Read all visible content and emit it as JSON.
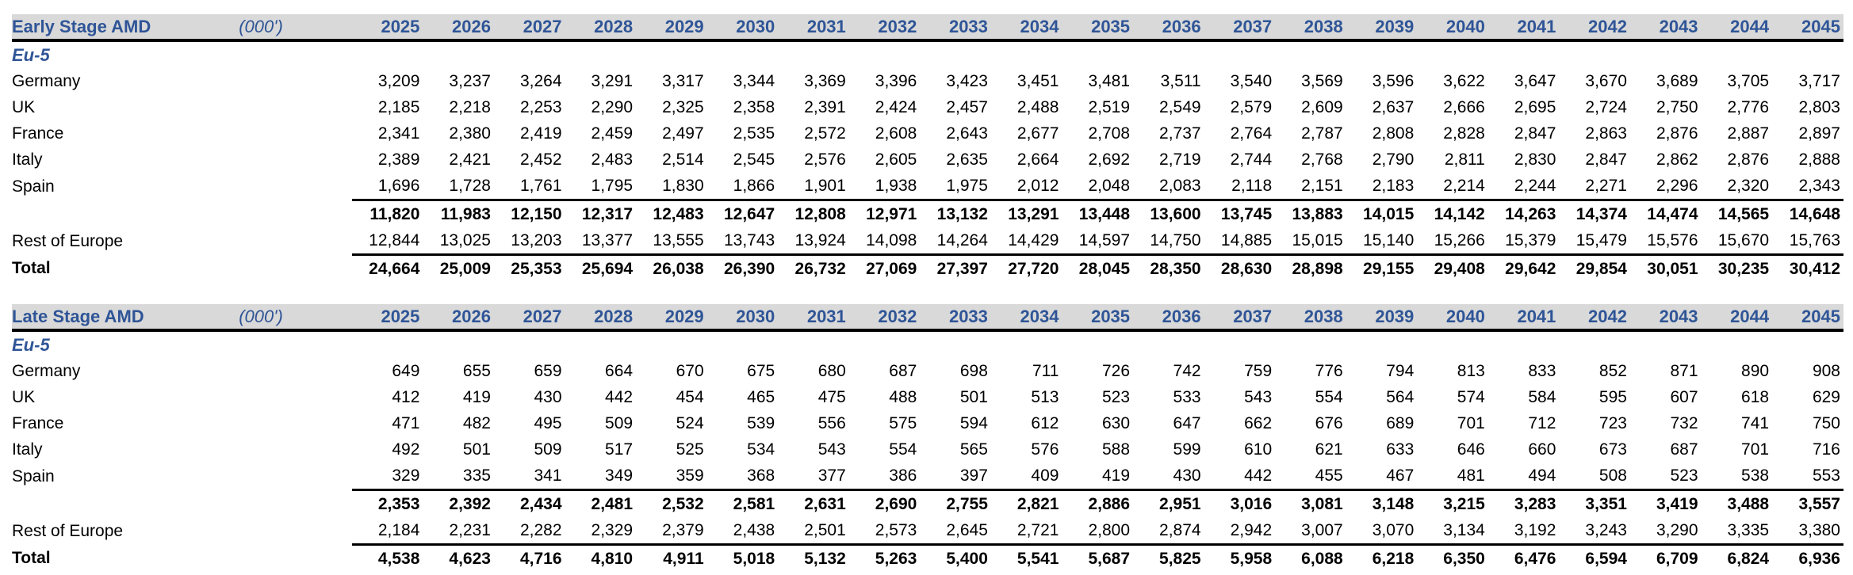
{
  "years": [
    "2025",
    "2026",
    "2027",
    "2028",
    "2029",
    "2030",
    "2031",
    "2032",
    "2033",
    "2034",
    "2035",
    "2036",
    "2037",
    "2038",
    "2039",
    "2040",
    "2041",
    "2042",
    "2043",
    "2044",
    "2045"
  ],
  "tables": [
    {
      "title": "Early Stage AMD",
      "unit": "(000')",
      "group": "Eu-5",
      "rows": [
        {
          "label": "Germany",
          "values": [
            "3,209",
            "3,237",
            "3,264",
            "3,291",
            "3,317",
            "3,344",
            "3,369",
            "3,396",
            "3,423",
            "3,451",
            "3,481",
            "3,511",
            "3,540",
            "3,569",
            "3,596",
            "3,622",
            "3,647",
            "3,670",
            "3,689",
            "3,705",
            "3,717"
          ]
        },
        {
          "label": "UK",
          "values": [
            "2,185",
            "2,218",
            "2,253",
            "2,290",
            "2,325",
            "2,358",
            "2,391",
            "2,424",
            "2,457",
            "2,488",
            "2,519",
            "2,549",
            "2,579",
            "2,609",
            "2,637",
            "2,666",
            "2,695",
            "2,724",
            "2,750",
            "2,776",
            "2,803"
          ]
        },
        {
          "label": "France",
          "values": [
            "2,341",
            "2,380",
            "2,419",
            "2,459",
            "2,497",
            "2,535",
            "2,572",
            "2,608",
            "2,643",
            "2,677",
            "2,708",
            "2,737",
            "2,764",
            "2,787",
            "2,808",
            "2,828",
            "2,847",
            "2,863",
            "2,876",
            "2,887",
            "2,897"
          ]
        },
        {
          "label": "Italy",
          "values": [
            "2,389",
            "2,421",
            "2,452",
            "2,483",
            "2,514",
            "2,545",
            "2,576",
            "2,605",
            "2,635",
            "2,664",
            "2,692",
            "2,719",
            "2,744",
            "2,768",
            "2,790",
            "2,811",
            "2,830",
            "2,847",
            "2,862",
            "2,876",
            "2,888"
          ]
        },
        {
          "label": "Spain",
          "values": [
            "1,696",
            "1,728",
            "1,761",
            "1,795",
            "1,830",
            "1,866",
            "1,901",
            "1,938",
            "1,975",
            "2,012",
            "2,048",
            "2,083",
            "2,118",
            "2,151",
            "2,183",
            "2,214",
            "2,244",
            "2,271",
            "2,296",
            "2,320",
            "2,343"
          ]
        }
      ],
      "subtotal": [
        "11,820",
        "11,983",
        "12,150",
        "12,317",
        "12,483",
        "12,647",
        "12,808",
        "12,971",
        "13,132",
        "13,291",
        "13,448",
        "13,600",
        "13,745",
        "13,883",
        "14,015",
        "14,142",
        "14,263",
        "14,374",
        "14,474",
        "14,565",
        "14,648"
      ],
      "rest": {
        "label": "Rest of Europe",
        "values": [
          "12,844",
          "13,025",
          "13,203",
          "13,377",
          "13,555",
          "13,743",
          "13,924",
          "14,098",
          "14,264",
          "14,429",
          "14,597",
          "14,750",
          "14,885",
          "15,015",
          "15,140",
          "15,266",
          "15,379",
          "15,479",
          "15,576",
          "15,670",
          "15,763"
        ]
      },
      "total": {
        "label": "Total",
        "values": [
          "24,664",
          "25,009",
          "25,353",
          "25,694",
          "26,038",
          "26,390",
          "26,732",
          "27,069",
          "27,397",
          "27,720",
          "28,045",
          "28,350",
          "28,630",
          "28,898",
          "29,155",
          "29,408",
          "29,642",
          "29,854",
          "30,051",
          "30,235",
          "30,412"
        ]
      }
    },
    {
      "title": "Late Stage AMD",
      "unit": "(000')",
      "group": "Eu-5",
      "rows": [
        {
          "label": "Germany",
          "values": [
            "649",
            "655",
            "659",
            "664",
            "670",
            "675",
            "680",
            "687",
            "698",
            "711",
            "726",
            "742",
            "759",
            "776",
            "794",
            "813",
            "833",
            "852",
            "871",
            "890",
            "908"
          ]
        },
        {
          "label": "UK",
          "values": [
            "412",
            "419",
            "430",
            "442",
            "454",
            "465",
            "475",
            "488",
            "501",
            "513",
            "523",
            "533",
            "543",
            "554",
            "564",
            "574",
            "584",
            "595",
            "607",
            "618",
            "629"
          ]
        },
        {
          "label": "France",
          "values": [
            "471",
            "482",
            "495",
            "509",
            "524",
            "539",
            "556",
            "575",
            "594",
            "612",
            "630",
            "647",
            "662",
            "676",
            "689",
            "701",
            "712",
            "723",
            "732",
            "741",
            "750"
          ]
        },
        {
          "label": "Italy",
          "values": [
            "492",
            "501",
            "509",
            "517",
            "525",
            "534",
            "543",
            "554",
            "565",
            "576",
            "588",
            "599",
            "610",
            "621",
            "633",
            "646",
            "660",
            "673",
            "687",
            "701",
            "716"
          ]
        },
        {
          "label": "Spain",
          "values": [
            "329",
            "335",
            "341",
            "349",
            "359",
            "368",
            "377",
            "386",
            "397",
            "409",
            "419",
            "430",
            "442",
            "455",
            "467",
            "481",
            "494",
            "508",
            "523",
            "538",
            "553"
          ]
        }
      ],
      "subtotal": [
        "2,353",
        "2,392",
        "2,434",
        "2,481",
        "2,532",
        "2,581",
        "2,631",
        "2,690",
        "2,755",
        "2,821",
        "2,886",
        "2,951",
        "3,016",
        "3,081",
        "3,148",
        "3,215",
        "3,283",
        "3,351",
        "3,419",
        "3,488",
        "3,557"
      ],
      "rest": {
        "label": "Rest of Europe",
        "values": [
          "2,184",
          "2,231",
          "2,282",
          "2,329",
          "2,379",
          "2,438",
          "2,501",
          "2,573",
          "2,645",
          "2,721",
          "2,800",
          "2,874",
          "2,942",
          "3,007",
          "3,070",
          "3,134",
          "3,192",
          "3,243",
          "3,290",
          "3,335",
          "3,380"
        ]
      },
      "total": {
        "label": "Total",
        "values": [
          "4,538",
          "4,623",
          "4,716",
          "4,810",
          "4,911",
          "5,018",
          "5,132",
          "5,263",
          "5,400",
          "5,541",
          "5,687",
          "5,825",
          "5,958",
          "6,088",
          "6,218",
          "6,350",
          "6,476",
          "6,594",
          "6,709",
          "6,824",
          "6,936"
        ]
      }
    }
  ]
}
